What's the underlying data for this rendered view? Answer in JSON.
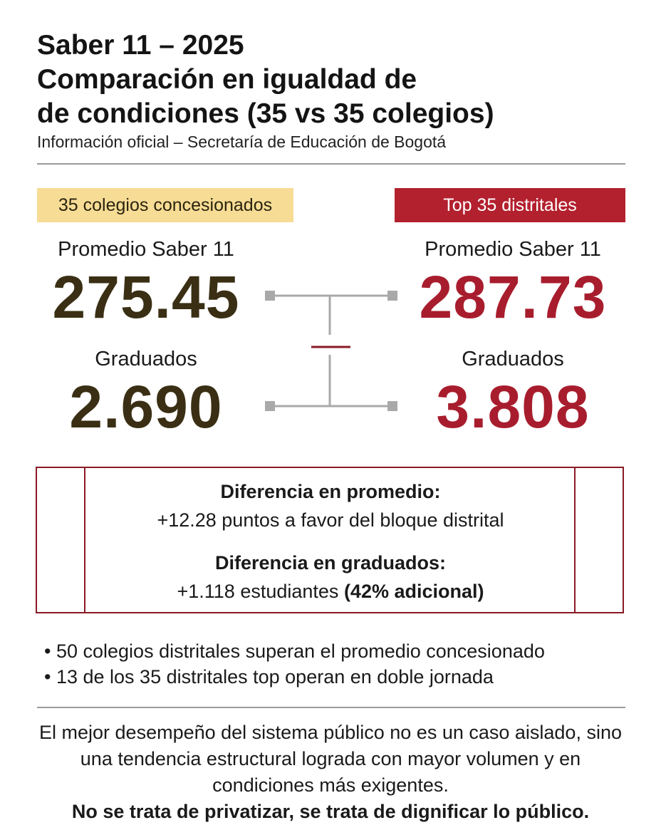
{
  "header": {
    "title_lines": [
      "Saber 11 – 2025",
      "Comparación en igualdad de",
      "de condiciones (35 vs 35 colegios)"
    ],
    "subtitle": "Información oficial – Secretaría de Educación de Bogotá"
  },
  "left": {
    "tag": "35 colegios concesionados",
    "avg_label": "Promedio Saber 11",
    "avg": "275.45",
    "grad_label": "Graduados",
    "grad": "2.690"
  },
  "right": {
    "tag": "Top 35 distritales",
    "avg_label": "Promedio Saber 11",
    "avg": "287.73",
    "grad_label": "Graduados",
    "grad": "3.808"
  },
  "box": {
    "items": [
      {
        "heading": "Diferencia en promedio:",
        "text": "+12.28 puntos a favor del bloque distrital"
      },
      {
        "heading": "Diferencia en graduados:",
        "text": "+1.118 estudiantes",
        "emphasis": "(42% adicional)"
      }
    ]
  },
  "bullets": [
    "50 colegios distritales superan el promedio concesionado",
    "13 de los 35 distritales top operan en doble jornada"
  ],
  "conclusion": {
    "text": "El mejor desempeño del sistema público no es un caso aislado, sino una tendencia estructural lograda con mayor volumen y en condiciones más exigentes.",
    "emphasis": "No se trata de privatizar, se trata de dignificar lo público."
  }
}
